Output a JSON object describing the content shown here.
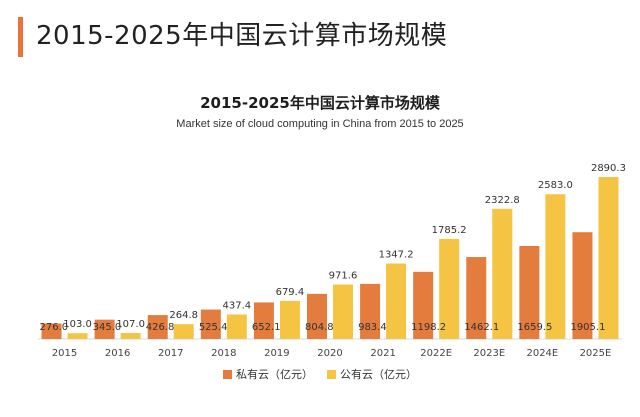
{
  "header": {
    "title": "2015-2025年中国云计算市场规模"
  },
  "chart_data": {
    "type": "bar",
    "title": "2015-2025年中国云计算市场规模",
    "subtitle": "Market size of cloud computing in China from 2015 to 2025",
    "categories": [
      "2015",
      "2016",
      "2017",
      "2018",
      "2019",
      "2020",
      "2021",
      "2022E",
      "2023E",
      "2024E",
      "2025E"
    ],
    "series": [
      {
        "name": "私有云（亿元）",
        "color": "#e37c3d",
        "values": [
          276.0,
          345.0,
          426.8,
          525.4,
          652.1,
          804.8,
          983.4,
          1198.2,
          1462.1,
          1659.5,
          1905.1
        ]
      },
      {
        "name": "公有云（亿元）",
        "color": "#f6c443",
        "values": [
          103.0,
          107.0,
          264.8,
          437.4,
          679.4,
          971.6,
          1347.2,
          1785.2,
          2322.8,
          2583.0,
          2890.3
        ]
      }
    ],
    "data_labels": {
      "series_0": [
        "276.0",
        "345.0",
        "426.8",
        "525.4",
        "652.1",
        "804.8",
        "983.4",
        "1198.2",
        "1462.1",
        "1659.5",
        "1905.1"
      ],
      "series_1": [
        "103.0",
        "107.0",
        "264.8",
        "437.4",
        "679.4",
        "971.6",
        "1347.2",
        "1785.2",
        "2322.8",
        "2583.0",
        "2890.3"
      ]
    },
    "xlabel": "",
    "ylabel": "",
    "ylim": [
      0,
      2890.3
    ],
    "grid": false,
    "legend_position": "bottom-center"
  }
}
